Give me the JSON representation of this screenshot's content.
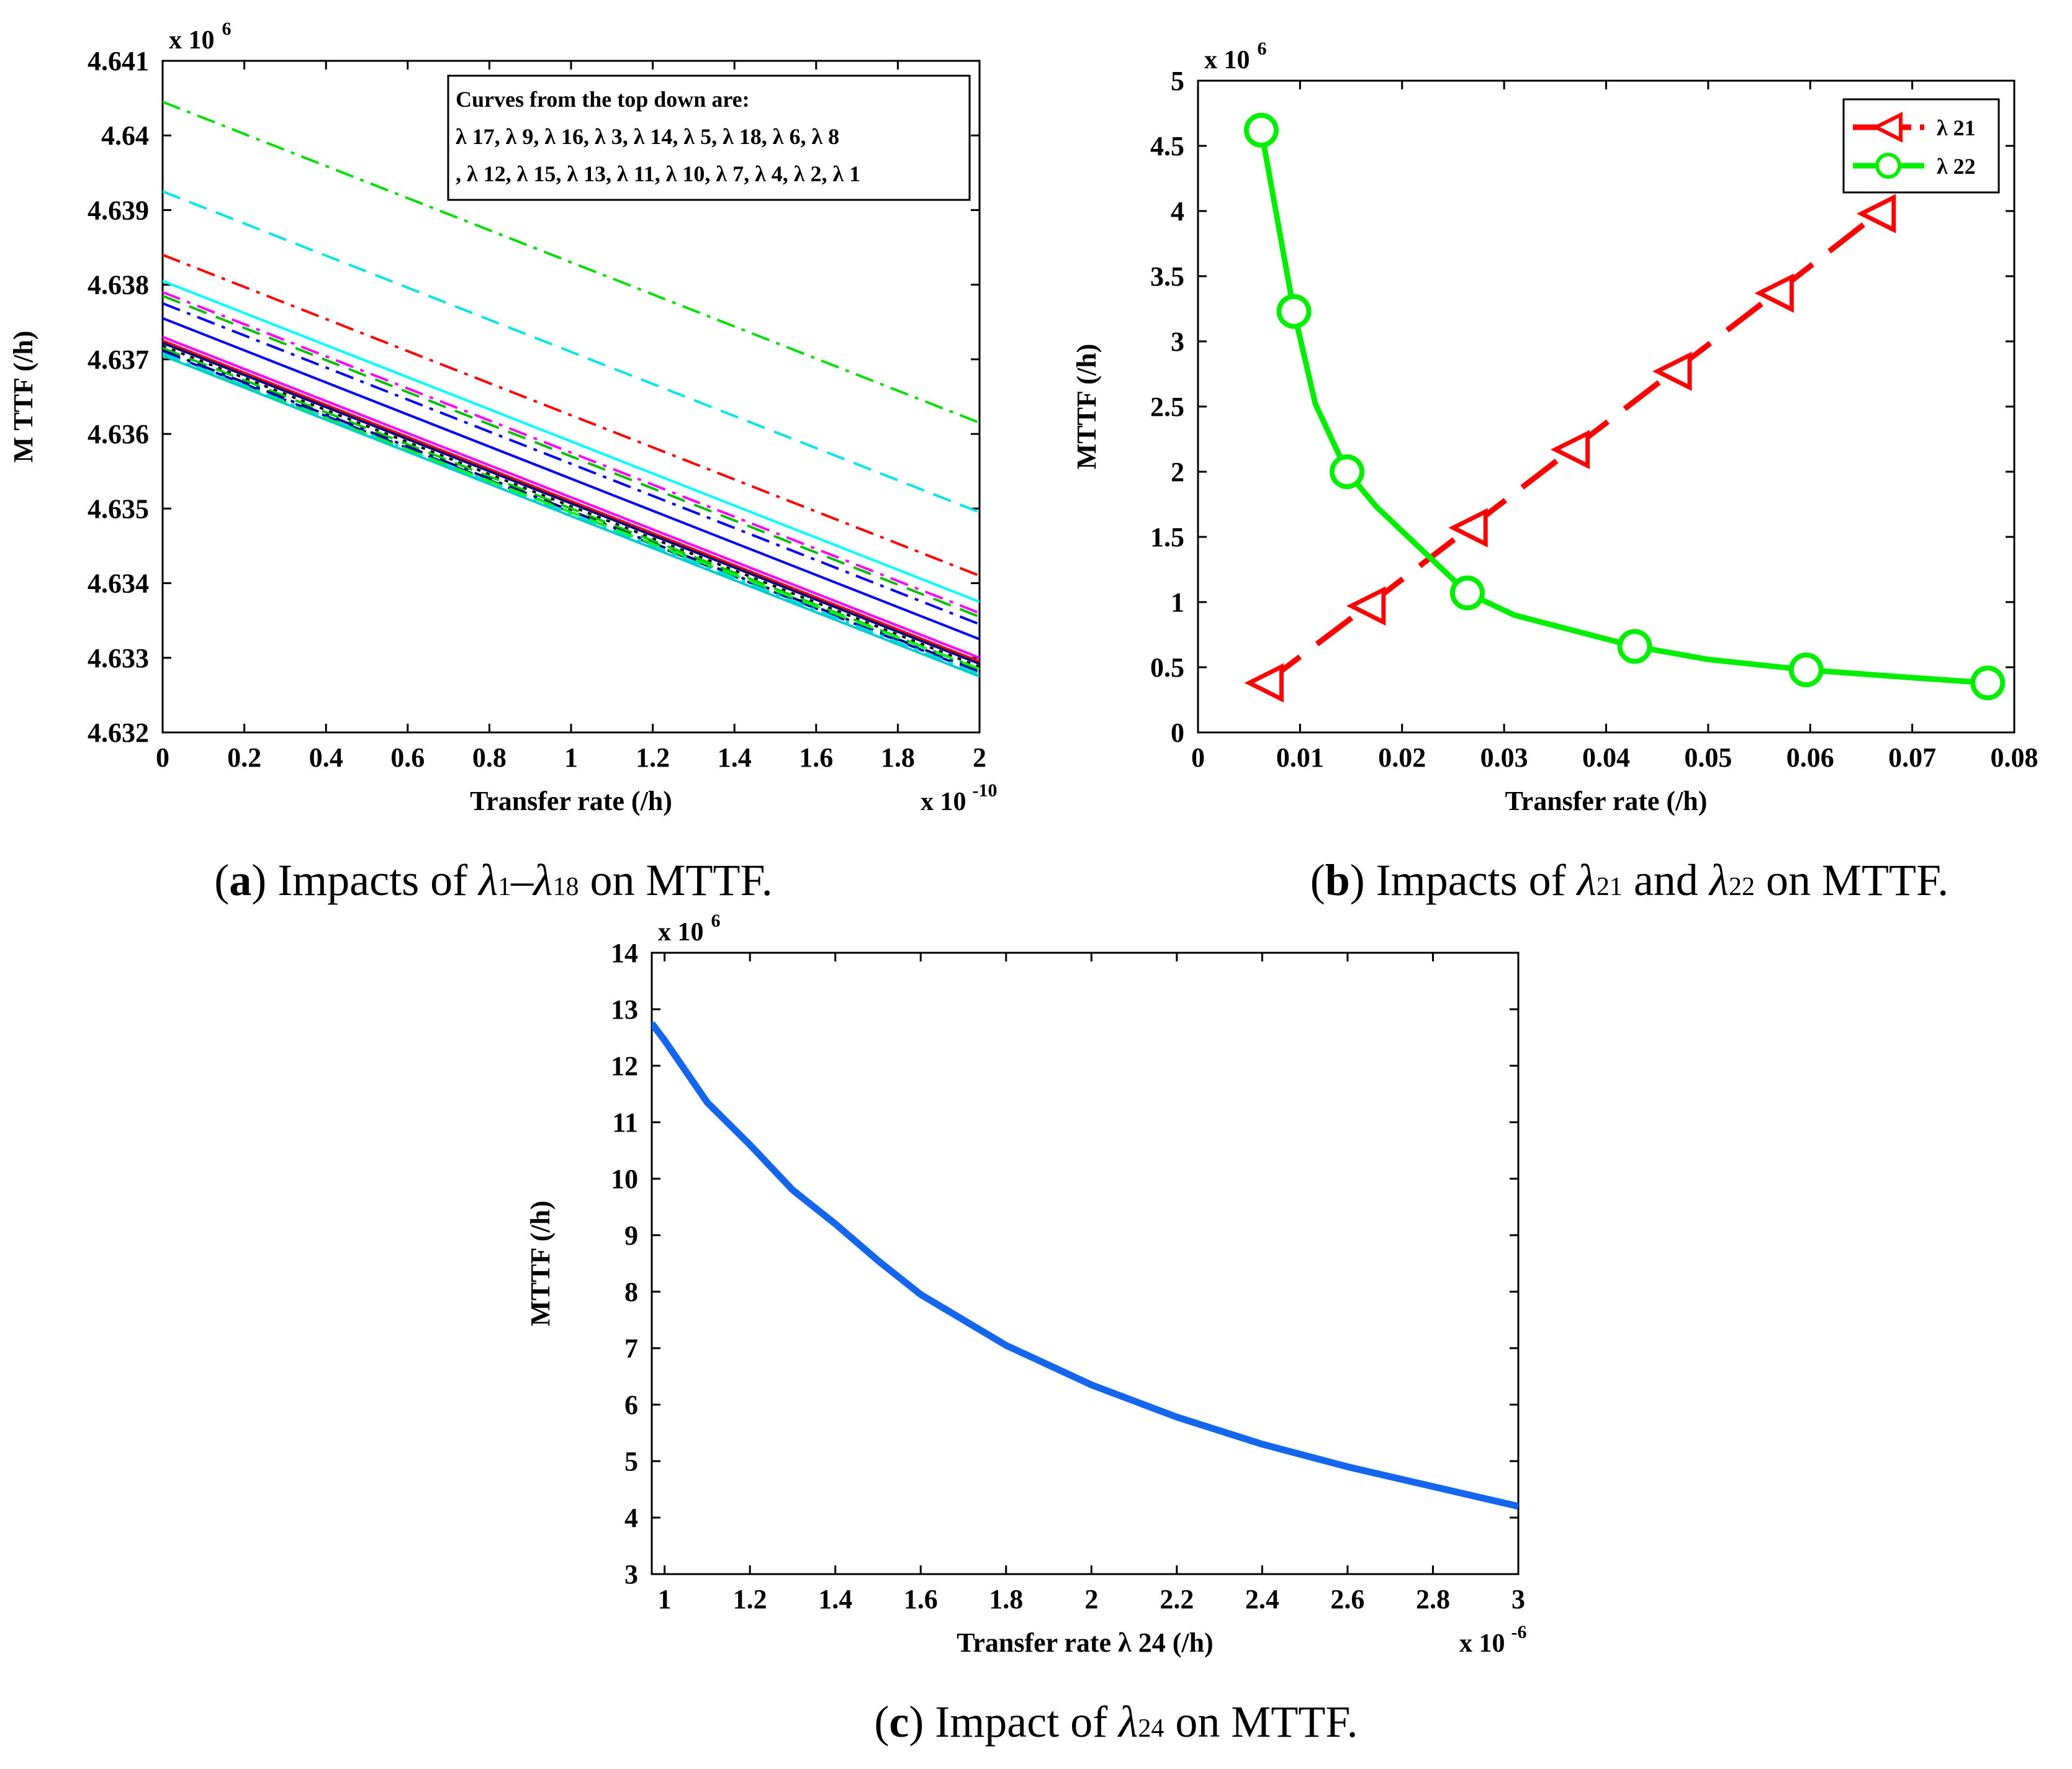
{
  "chart_data": [
    {
      "id": "a",
      "type": "line",
      "caption": {
        "label": "a",
        "text_before": " Impacts of ",
        "sym1": "λ",
        "sub1": "1",
        "dash": "–",
        "sym2": "λ",
        "sub2": "18",
        "text_after": " on MTTF."
      },
      "xlabel": "Transfer rate (/h)",
      "ylabel": "M TTF (/h)",
      "x_multiplier": "x 10",
      "x_exponent": "-10",
      "y_multiplier": "x 10",
      "y_exponent": "6",
      "xlim": [
        0,
        2
      ],
      "ylim": [
        4.632,
        4.641
      ],
      "x_ticks": [
        0,
        0.2,
        0.4,
        0.6,
        0.8,
        1,
        1.2,
        1.4,
        1.6,
        1.8,
        2
      ],
      "x_tick_labels": [
        "0",
        "0.2",
        "0.4",
        "0.6",
        "0.8",
        "1",
        "1.2",
        "1.4",
        "1.6",
        "1.8",
        "2"
      ],
      "y_ticks": [
        4.632,
        4.633,
        4.634,
        4.635,
        4.636,
        4.637,
        4.638,
        4.639,
        4.64,
        4.641
      ],
      "y_tick_labels": [
        "4.632",
        "4.633",
        "4.634",
        "4.635",
        "4.636",
        "4.637",
        "4.638",
        "4.639",
        "4.64",
        "4.641"
      ],
      "annotation": [
        "Curves from the top down are:",
        "λ 17, λ 9, λ 16, λ 3, λ 14, λ 5, λ 18, λ 6, λ 8",
        ", λ 12, λ 15, λ 13, λ 11, λ 10, λ 7, λ 4, λ 2, λ 1"
      ],
      "series": [
        {
          "color": "#00dd00",
          "dash": "dashdot",
          "y": [
            4.64045,
            4.63615
          ]
        },
        {
          "color": "#00e5e5",
          "dash": "dashed",
          "y": [
            4.63925,
            4.63495
          ]
        },
        {
          "color": "#ff0000",
          "dash": "dashdot",
          "y": [
            4.6384,
            4.6341
          ]
        },
        {
          "color": "#00ffff",
          "dash": "solid",
          "y": [
            4.63805,
            4.63375
          ]
        },
        {
          "color": "#ff00ff",
          "dash": "dashdot",
          "y": [
            4.6379,
            4.6336
          ]
        },
        {
          "color": "#00c000",
          "dash": "dashed",
          "y": [
            4.63785,
            4.63355
          ]
        },
        {
          "color": "#0000ff",
          "dash": "dashdot",
          "y": [
            4.63775,
            4.63345
          ]
        },
        {
          "color": "#0000ff",
          "dash": "solid",
          "y": [
            4.63755,
            4.63325
          ]
        },
        {
          "color": "#ff00ff",
          "dash": "solid",
          "y": [
            4.6373,
            4.633
          ]
        },
        {
          "color": "#ff0000",
          "dash": "solid",
          "y": [
            4.63725,
            4.63295
          ]
        },
        {
          "color": "#000080",
          "dash": "solid",
          "y": [
            4.63722,
            4.63292
          ]
        },
        {
          "color": "#000000",
          "dash": "dotted",
          "y": [
            4.63718,
            4.63288
          ]
        },
        {
          "color": "#00cc00",
          "dash": "dashed",
          "y": [
            4.63715,
            4.63285
          ]
        },
        {
          "color": "#000080",
          "dash": "dashdot",
          "y": [
            4.63712,
            4.63282
          ]
        },
        {
          "color": "#0000cc",
          "dash": "dashed",
          "y": [
            4.6371,
            4.6328
          ]
        },
        {
          "color": "#00dddd",
          "dash": "dashdot",
          "y": [
            4.63708,
            4.63278
          ]
        },
        {
          "color": "#00ff00",
          "dash": "dashed",
          "y": [
            4.63705,
            4.63285
          ]
        },
        {
          "color": "#00cccc",
          "dash": "solid",
          "y": [
            4.63705,
            4.63275
          ]
        }
      ]
    },
    {
      "id": "b",
      "type": "line",
      "caption": {
        "label": "b",
        "text_before": " Impacts of ",
        "sym1": "λ",
        "sub1": "21",
        "mid": " and ",
        "sym2": "λ",
        "sub2": "22",
        "text_after": " on MTTF."
      },
      "xlabel": "Transfer rate (/h)",
      "ylabel": "MTTF (/h)",
      "y_multiplier": "x 10",
      "y_exponent": "6",
      "xlim": [
        0,
        0.08
      ],
      "ylim": [
        0,
        5
      ],
      "x_ticks": [
        0,
        0.01,
        0.02,
        0.03,
        0.04,
        0.05,
        0.06,
        0.07,
        0.08
      ],
      "x_tick_labels": [
        "0",
        "0.01",
        "0.02",
        "0.03",
        "0.04",
        "0.05",
        "0.06",
        "0.07",
        "0.08"
      ],
      "y_ticks": [
        0,
        0.5,
        1,
        1.5,
        2,
        2.5,
        3,
        3.5,
        4,
        4.5,
        5
      ],
      "y_tick_labels": [
        "0",
        "0.5",
        "1",
        "1.5",
        "2",
        "2.5",
        "3",
        "3.5",
        "4",
        "4.5",
        "5"
      ],
      "series": [
        {
          "name": "λ 21",
          "color": "#ff0000",
          "dash": "dashed",
          "marker": "triangle-left",
          "x": [
            0.0066,
            0.0166,
            0.0266,
            0.0366,
            0.0466,
            0.0566,
            0.0666
          ],
          "y": [
            0.38,
            0.97,
            1.57,
            2.17,
            2.77,
            3.37,
            3.98
          ]
        },
        {
          "name": "λ 22",
          "color": "#00ee00",
          "dash": "solid",
          "marker": "circle",
          "x": [
            0.0062,
            0.0094,
            0.0115,
            0.0146,
            0.0175,
            0.0264,
            0.031,
            0.0428,
            0.05,
            0.0596,
            0.07,
            0.0774
          ],
          "y": [
            4.62,
            3.23,
            2.52,
            2.0,
            1.73,
            1.07,
            0.9,
            0.66,
            0.56,
            0.48,
            0.42,
            0.38
          ],
          "marker_idx": [
            0,
            1,
            3,
            5,
            7,
            9,
            11
          ]
        }
      ]
    },
    {
      "id": "c",
      "type": "line",
      "caption": {
        "label": "c",
        "text_before": " Impact of ",
        "sym1": "λ",
        "sub1": "24",
        "text_after": " on MTTF."
      },
      "xlabel": "Transfer rate  λ 24 (/h)",
      "ylabel": "MTTF (/h)",
      "x_multiplier": "x 10",
      "x_exponent": "-6",
      "y_multiplier": "x 10",
      "y_exponent": "6",
      "xlim": [
        0.97,
        3
      ],
      "ylim": [
        3,
        14
      ],
      "x_ticks": [
        1,
        1.2,
        1.4,
        1.6,
        1.8,
        2,
        2.2,
        2.4,
        2.6,
        2.8,
        3
      ],
      "x_tick_labels": [
        "1",
        "1.2",
        "1.4",
        "1.6",
        "1.8",
        "2",
        "2.2",
        "2.4",
        "2.6",
        "2.8",
        "3"
      ],
      "y_ticks": [
        3,
        4,
        5,
        6,
        7,
        8,
        9,
        10,
        11,
        12,
        13,
        14
      ],
      "y_tick_labels": [
        "3",
        "4",
        "5",
        "6",
        "7",
        "8",
        "9",
        "10",
        "11",
        "12",
        "13",
        "14"
      ],
      "series": [
        {
          "name": "MTTF",
          "color": "#1566ee",
          "dash": "solid",
          "x": [
            0.97,
            1.0,
            1.1,
            1.2,
            1.3,
            1.4,
            1.5,
            1.6,
            1.8,
            2.0,
            2.2,
            2.4,
            2.6,
            2.8,
            3.0
          ],
          "y": [
            12.75,
            12.45,
            11.35,
            10.6,
            9.8,
            9.2,
            8.55,
            7.95,
            7.05,
            6.35,
            5.78,
            5.3,
            4.9,
            4.55,
            4.2
          ]
        }
      ]
    }
  ]
}
